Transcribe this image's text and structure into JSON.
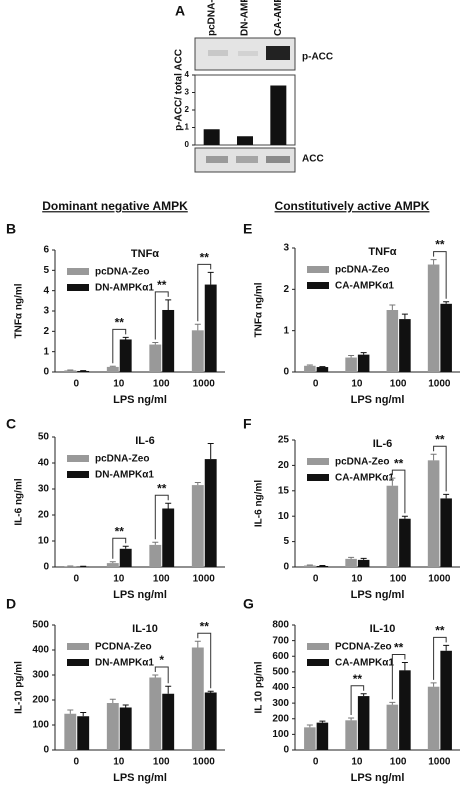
{
  "figure": {
    "headings": [
      "Dominant negative AMPK",
      "Constitutively active AMPK"
    ]
  },
  "chart_data": [
    {
      "type": "bar",
      "panel": "A",
      "categories": [
        "pcDNA-Zeo",
        "DN-AMPK",
        "CA-AMPK"
      ],
      "blot_labels": [
        "p-ACC",
        "ACC"
      ],
      "ylabel": "p-ACC/ total ACC",
      "values": [
        0.9,
        0.5,
        3.4
      ],
      "color": "#111111",
      "ylim": [
        0,
        4
      ],
      "yticks": [
        0,
        1,
        2,
        3,
        4
      ]
    },
    {
      "type": "grouped_bar",
      "panel": "B",
      "title": "TNFα",
      "ylabel": "TNFα ng/ml",
      "xlabel": "LPS ng/ml",
      "categories": [
        "0",
        "10",
        "100",
        "1000"
      ],
      "ylim": [
        0,
        6
      ],
      "yticks": [
        0,
        1,
        2,
        3,
        4,
        5,
        6
      ],
      "series": [
        {
          "name": "pcDNA-Zeo",
          "color": "#999999",
          "values": [
            0.08,
            0.25,
            1.35,
            2.05
          ],
          "errors": [
            0.02,
            0.03,
            0.1,
            0.3
          ]
        },
        {
          "name": "DN-AMPKα1",
          "color": "#111111",
          "values": [
            0.05,
            1.6,
            3.05,
            4.3
          ],
          "errors": [
            0.02,
            0.1,
            0.5,
            0.6
          ]
        }
      ],
      "annotations": [
        null,
        "**",
        "**",
        "**"
      ]
    },
    {
      "type": "grouped_bar",
      "panel": "E",
      "title": "TNFα",
      "ylabel": "TNFα ng/ml",
      "xlabel": "LPS ng/ml",
      "categories": [
        "0",
        "10",
        "100",
        "1000"
      ],
      "ylim": [
        0,
        3
      ],
      "yticks": [
        0,
        1,
        2,
        3
      ],
      "series": [
        {
          "name": "pcDNA-Zeo",
          "color": "#999999",
          "values": [
            0.15,
            0.35,
            1.5,
            2.6
          ],
          "errors": [
            0.02,
            0.05,
            0.12,
            0.12
          ]
        },
        {
          "name": "CA-AMPKα1",
          "color": "#111111",
          "values": [
            0.12,
            0.42,
            1.28,
            1.65
          ],
          "errors": [
            0.01,
            0.05,
            0.12,
            0.05
          ]
        }
      ],
      "annotations": [
        null,
        null,
        null,
        "**"
      ]
    },
    {
      "type": "grouped_bar",
      "panel": "C",
      "title": "IL-6",
      "ylabel": "IL-6 ng/ml",
      "xlabel": "LPS ng/ml",
      "categories": [
        "0",
        "10",
        "100",
        "1000"
      ],
      "ylim": [
        0,
        50
      ],
      "yticks": [
        0,
        10,
        20,
        30,
        40,
        50
      ],
      "series": [
        {
          "name": "pcDNA-Zeo",
          "color": "#999999",
          "values": [
            0.3,
            1.5,
            8.5,
            31.5
          ],
          "errors": [
            0.1,
            0.5,
            1,
            1
          ]
        },
        {
          "name": "DN-AMPKα1",
          "color": "#111111",
          "values": [
            0.2,
            7,
            22.5,
            41.5
          ],
          "errors": [
            0.1,
            1,
            2,
            6
          ]
        }
      ],
      "annotations": [
        null,
        "**",
        "**",
        null
      ]
    },
    {
      "type": "grouped_bar",
      "panel": "F",
      "title": "IL-6",
      "ylabel": "IL-6 ng/ml",
      "xlabel": "LPS ng/ml",
      "categories": [
        "0",
        "10",
        "100",
        "1000"
      ],
      "ylim": [
        0,
        25
      ],
      "yticks": [
        0,
        5,
        10,
        15,
        20,
        25
      ],
      "series": [
        {
          "name": "pcDNA-Zeo",
          "color": "#999999",
          "values": [
            0.3,
            1.6,
            16,
            21
          ],
          "errors": [
            0.1,
            0.3,
            1.5,
            1.2
          ]
        },
        {
          "name": "CA-AMPKα1",
          "color": "#111111",
          "values": [
            0.2,
            1.4,
            9.5,
            13.5
          ],
          "errors": [
            0.1,
            0.3,
            0.5,
            0.8
          ]
        }
      ],
      "annotations": [
        null,
        null,
        "**",
        "**"
      ]
    },
    {
      "type": "grouped_bar",
      "panel": "D",
      "title": "IL-10",
      "ylabel": "IL-10 pg/ml",
      "xlabel": "LPS ng/ml",
      "categories": [
        "0",
        "10",
        "100",
        "1000"
      ],
      "ylim": [
        0,
        500
      ],
      "yticks": [
        0,
        100,
        200,
        300,
        400,
        500
      ],
      "series": [
        {
          "name": "PCDNA-Zeo",
          "color": "#999999",
          "values": [
            145,
            188,
            290,
            410
          ],
          "errors": [
            15,
            15,
            10,
            25
          ]
        },
        {
          "name": "DN-AMPKα1",
          "color": "#111111",
          "values": [
            135,
            170,
            225,
            230
          ],
          "errors": [
            15,
            10,
            30,
            5
          ]
        }
      ],
      "annotations": [
        null,
        null,
        "*",
        "**"
      ]
    },
    {
      "type": "grouped_bar",
      "panel": "G",
      "title": "IL-10",
      "ylabel": "IL 10 pg/ml",
      "xlabel": "LPS ng/ml",
      "categories": [
        "0",
        "10",
        "100",
        "1000"
      ],
      "ylim": [
        0,
        800
      ],
      "yticks": [
        0,
        100,
        200,
        300,
        400,
        500,
        600,
        700,
        800
      ],
      "series": [
        {
          "name": "PCDNA-Zeo",
          "color": "#999999",
          "values": [
            145,
            190,
            290,
            405
          ],
          "errors": [
            15,
            15,
            15,
            25
          ]
        },
        {
          "name": "CA-AMPKα1",
          "color": "#111111",
          "values": [
            175,
            345,
            510,
            635
          ],
          "errors": [
            10,
            15,
            50,
            35
          ]
        }
      ],
      "annotations": [
        null,
        "**",
        "**",
        "**"
      ]
    }
  ]
}
